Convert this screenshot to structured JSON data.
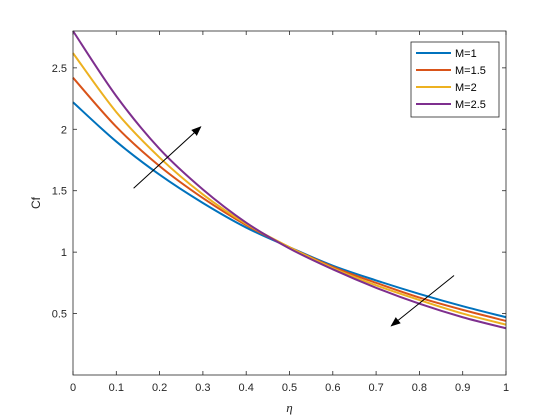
{
  "chart_data": {
    "type": "line",
    "xlabel": "η",
    "ylabel": "Cf",
    "xlim": [
      0,
      1
    ],
    "ylim": [
      0,
      2.8
    ],
    "xticks": [
      0,
      0.1,
      0.2,
      0.3,
      0.4,
      0.5,
      0.6,
      0.7,
      0.8,
      0.9,
      1
    ],
    "xtick_labels": [
      "0",
      "0.1",
      "0.2",
      "0.3",
      "0.4",
      "0.5",
      "0.6",
      "0.7",
      "0.8",
      "0.9",
      "1"
    ],
    "yticks": [
      0.5,
      1,
      1.5,
      2,
      2.5
    ],
    "ytick_labels": [
      "0.5",
      "1",
      "1.5",
      "2",
      "2.5"
    ],
    "grid": false,
    "legend_position": "top-right",
    "x": [
      0,
      0.1,
      0.2,
      0.3,
      0.4,
      0.5,
      0.6,
      0.7,
      0.8,
      0.9,
      1
    ],
    "series": [
      {
        "name": "M=1",
        "color": "#0072BD",
        "values": [
          2.22,
          1.9,
          1.63,
          1.4,
          1.2,
          1.04,
          0.89,
          0.77,
          0.66,
          0.56,
          0.47
        ]
      },
      {
        "name": "M=1.5",
        "color": "#D95319",
        "values": [
          2.42,
          2.02,
          1.7,
          1.44,
          1.22,
          1.04,
          0.88,
          0.75,
          0.63,
          0.53,
          0.44
        ]
      },
      {
        "name": "M=2",
        "color": "#EDB120",
        "values": [
          2.62,
          2.14,
          1.77,
          1.47,
          1.23,
          1.04,
          0.87,
          0.73,
          0.61,
          0.5,
          0.41
        ]
      },
      {
        "name": "M=2.5",
        "color": "#7E2F8E",
        "values": [
          2.8,
          2.27,
          1.84,
          1.51,
          1.24,
          1.03,
          0.86,
          0.71,
          0.58,
          0.47,
          0.38
        ]
      }
    ],
    "annotations": [
      {
        "kind": "arrow",
        "from": [
          0.14,
          1.52
        ],
        "to": [
          0.295,
          2.02
        ]
      },
      {
        "kind": "arrow",
        "from": [
          0.88,
          0.81
        ],
        "to": [
          0.735,
          0.4
        ]
      }
    ]
  }
}
